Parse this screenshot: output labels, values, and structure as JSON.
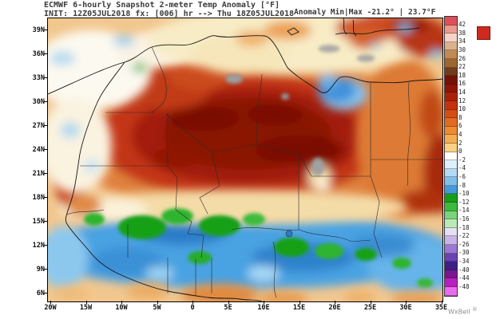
{
  "header": {
    "line1": "ECMWF 6-hourly Snapshot 2-meter Temp Anomaly [°F]",
    "line2": "INIT: 12Z05JUL2018 fx: [006] hr --> Thu 18Z05JUL2018",
    "anomaly_minmax": "Anomaly Min|Max -21.2° | 23.7°F"
  },
  "axes": {
    "lat_labels": [
      "39N",
      "36N",
      "33N",
      "30N",
      "27N",
      "24N",
      "21N",
      "18N",
      "15N",
      "12N",
      "9N",
      "6N"
    ],
    "lon_labels": [
      "20W",
      "15W",
      "10W",
      "5W",
      "0",
      "5E",
      "10E",
      "15E",
      "20E",
      "25E",
      "30E",
      "35E"
    ]
  },
  "colorbar": {
    "labels": [
      "42",
      "38",
      "34",
      "30",
      "26",
      "22",
      "18",
      "16",
      "14",
      "12",
      "10",
      "8",
      "6",
      "4",
      "2",
      "0",
      "-2",
      "-4",
      "-6",
      "-8",
      "-10",
      "-12",
      "-14",
      "-16",
      "-18",
      "-22",
      "-26",
      "-30",
      "-34",
      "-40",
      "-44",
      "-48"
    ],
    "colors": [
      "#dd4f5a",
      "#ea9a8e",
      "#f6d3c8",
      "#dab38b",
      "#c08a52",
      "#9e6630",
      "#713c1b",
      "#731208",
      "#8e1506",
      "#aa2106",
      "#c4330c",
      "#d64d15",
      "#e36a21",
      "#ed8b33",
      "#f5ad52",
      "#fad183",
      "#ffffff",
      "#ddeffa",
      "#b3daf4",
      "#7fc0ea",
      "#459ade",
      "#16a016",
      "#3cbc3c",
      "#7ad47a",
      "#b8eab8",
      "#e6e0f2",
      "#c8b4e6",
      "#9b78d2",
      "#6a42b4",
      "#3d1f86",
      "#7a1490",
      "#b81fc0",
      "#ea6cee"
    ]
  },
  "watermark": "WxBell",
  "watermark_mark": "®",
  "map_palette": {
    "hot_core": "#8a1204",
    "warm": "#e0813c",
    "neutral": "#f2c78e",
    "cool_band": "#4aa2e2",
    "cool_green": "#17a017",
    "missing_gray": "#9e9e9e"
  }
}
